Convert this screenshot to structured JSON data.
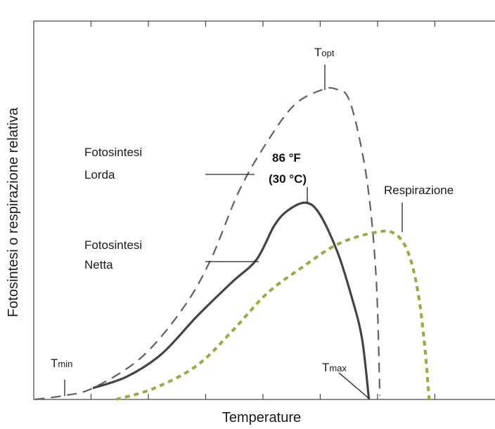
{
  "chart_data": {
    "type": "line",
    "title": "",
    "xlabel": "Temperature",
    "ylabel": "Fotosintesi o respirazione relativa",
    "xlim": [
      0,
      8.05
    ],
    "ylim": [
      0,
      1
    ],
    "x_ticks": [
      1,
      2,
      3,
      4,
      5,
      6,
      7
    ],
    "tick_labels_shown": false,
    "grid": false,
    "legend": "none (inline labels)",
    "series": [
      {
        "name": "Fotosintesi Lorda",
        "style": "dashed",
        "color": "#5f6166",
        "x": [
          0.02,
          0.52,
          1.03,
          1.87,
          2.6,
          3.09,
          3.58,
          4.07,
          4.56,
          5.06,
          5.28,
          5.48,
          5.67,
          5.85,
          5.98,
          6.04
        ],
        "y": [
          0,
          0.01,
          0.03,
          0.11,
          0.24,
          0.37,
          0.55,
          0.68,
          0.78,
          0.82,
          0.82,
          0.8,
          0.7,
          0.54,
          0.31,
          0.01
        ]
      },
      {
        "name": "Fotosintesi Netta",
        "style": "solid",
        "color": "#444444",
        "x": [
          1.03,
          1.62,
          2.23,
          2.85,
          3.46,
          3.89,
          4.2,
          4.44,
          4.75,
          4.99,
          5.3,
          5.55,
          5.73,
          5.85
        ],
        "y": [
          0.03,
          0.06,
          0.12,
          0.22,
          0.31,
          0.37,
          0.46,
          0.5,
          0.52,
          0.49,
          0.39,
          0.27,
          0.16,
          0
        ]
      },
      {
        "name": "Respirazione",
        "style": "dotted",
        "color": "#8fb03a",
        "x": [
          1.44,
          2.11,
          2.85,
          3.46,
          4.07,
          4.69,
          5.3,
          5.91,
          6.28,
          6.53,
          6.71,
          6.83,
          6.9
        ],
        "y": [
          0,
          0.03,
          0.09,
          0.18,
          0.28,
          0.35,
          0.41,
          0.44,
          0.44,
          0.39,
          0.28,
          0.13,
          0
        ]
      }
    ],
    "annotations": {
      "tmin": {
        "main": "T",
        "sub": "min"
      },
      "topt": {
        "main": "T",
        "sub": "opt"
      },
      "tmax": {
        "main": "T",
        "sub": "max"
      },
      "peak_f": "86 °F",
      "peak_c": "(30 °C)",
      "gross_line1": "Fotosintesi",
      "gross_line2": "Lorda",
      "net_line1": "Fotosintesi",
      "net_line2": "Netta",
      "resp": "Respirazione"
    }
  }
}
